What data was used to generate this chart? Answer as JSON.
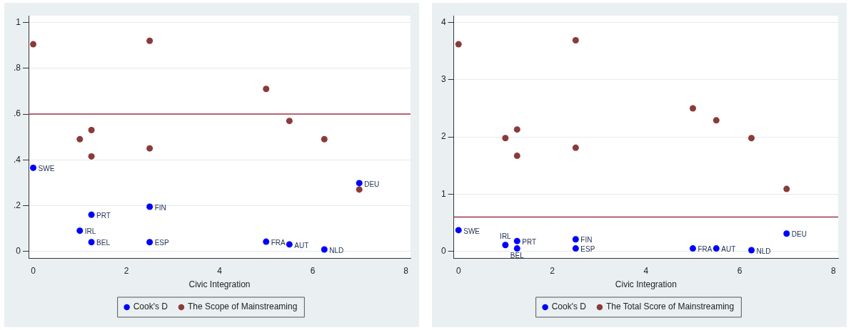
{
  "chart_data": [
    {
      "type": "scatter",
      "xlabel": "Civic Integration",
      "xlim": [
        -0.1,
        8.1
      ],
      "xticks": [
        0,
        2,
        4,
        6,
        8
      ],
      "ylim": [
        -0.03,
        1.03
      ],
      "yticks": [
        0,
        {
          "value": 0.2,
          "label": ".2"
        },
        {
          "value": 0.4,
          "label": ".4"
        },
        {
          "value": 0.6,
          "label": ".6"
        },
        {
          "value": 0.8,
          "label": ".8"
        },
        1
      ],
      "grid": "y",
      "legend": "bottom",
      "marker": "circle",
      "series": [
        {
          "name": "Cook's D",
          "color": "#0000ff",
          "x": [
            0,
            1,
            1.25,
            1.25,
            2.5,
            2.5,
            5,
            5.5,
            6.25,
            7
          ],
          "values": [
            0.365,
            0.09,
            0.16,
            0.04,
            0.195,
            0.04,
            0.042,
            0.03,
            0.008,
            0.298
          ]
        },
        {
          "name": "The Scope of Mainstreaming",
          "color": "#8b3a3a",
          "x": [
            0,
            1,
            1.25,
            1.25,
            2.5,
            2.5,
            5,
            5.5,
            6.25,
            7
          ],
          "values": [
            0.905,
            0.49,
            0.53,
            0.415,
            0.92,
            0.45,
            0.71,
            0.57,
            0.49,
            0.27
          ]
        }
      ],
      "ref_lines": [
        {
          "axis": "y",
          "value": 0.6,
          "color": "#a0334a"
        }
      ],
      "annotations": [
        {
          "text": "SWE",
          "x": 0,
          "y": 0.365
        },
        {
          "text": "IRL",
          "x": 1,
          "y": 0.09
        },
        {
          "text": "PRT",
          "x": 1.25,
          "y": 0.16
        },
        {
          "text": "BEL",
          "x": 1.25,
          "y": 0.04
        },
        {
          "text": "FIN",
          "x": 2.5,
          "y": 0.195
        },
        {
          "text": "ESP",
          "x": 2.5,
          "y": 0.04
        },
        {
          "text": "FRA",
          "x": 5,
          "y": 0.042
        },
        {
          "text": "AUT",
          "x": 5.5,
          "y": 0.03
        },
        {
          "text": "NLD",
          "x": 6.25,
          "y": 0.008
        },
        {
          "text": "DEU",
          "x": 7,
          "y": 0.298
        }
      ]
    },
    {
      "type": "scatter",
      "xlabel": "Civic Integration",
      "xlim": [
        -0.1,
        8.1
      ],
      "xticks": [
        0,
        2,
        4,
        6,
        8
      ],
      "ylim": [
        -0.12,
        4.12
      ],
      "yticks": [
        0,
        1,
        2,
        3,
        4
      ],
      "grid": "y",
      "legend": "bottom",
      "marker": "circle",
      "series": [
        {
          "name": "Cook's D",
          "color": "#0000ff",
          "x": [
            0,
            1,
            1.25,
            1.25,
            2.5,
            2.5,
            5,
            5.5,
            6.25,
            7
          ],
          "values": [
            0.37,
            0.11,
            0.18,
            0.05,
            0.21,
            0.05,
            0.05,
            0.05,
            0.02,
            0.31
          ]
        },
        {
          "name": "The Total Score of Mainstreaming",
          "color": "#8b3a3a",
          "x": [
            0,
            1,
            1.25,
            1.25,
            2.5,
            2.5,
            5,
            5.5,
            6.25,
            7
          ],
          "values": [
            3.62,
            1.98,
            2.13,
            1.67,
            3.69,
            1.81,
            2.5,
            2.29,
            1.98,
            1.09
          ]
        }
      ],
      "ref_lines": [
        {
          "axis": "y",
          "value": 0.6,
          "color": "#a0334a"
        }
      ],
      "annotations": [
        {
          "text": "SWE",
          "x": 0,
          "y": 0.37
        },
        {
          "text": "IRL",
          "x": 1,
          "y": 0.11
        },
        {
          "text": "PRT",
          "x": 1.25,
          "y": 0.18
        },
        {
          "text": "BEL",
          "x": 1.25,
          "y": 0.05
        },
        {
          "text": "FIN",
          "x": 2.5,
          "y": 0.21
        },
        {
          "text": "ESP",
          "x": 2.5,
          "y": 0.05
        },
        {
          "text": "FRA",
          "x": 5,
          "y": 0.05
        },
        {
          "text": "AUT",
          "x": 5.5,
          "y": 0.05
        },
        {
          "text": "NLD",
          "x": 6.25,
          "y": 0.02
        },
        {
          "text": "DEU",
          "x": 7,
          "y": 0.31
        }
      ]
    }
  ]
}
